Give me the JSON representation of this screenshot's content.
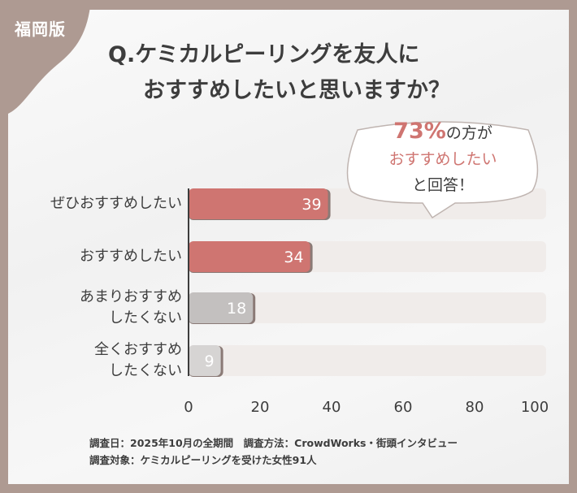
{
  "badge": "福岡版",
  "title": {
    "line1": "Q.ケミカルピーリングを友人に",
    "line2": "おすすめしたいと思いますか？"
  },
  "callout": {
    "percent": "73%",
    "line1_rest": "の方が",
    "line2": "おすすめしたい",
    "line3": "と回答！"
  },
  "colors": {
    "background": "#ae9a92",
    "recommend": "#cf7571",
    "not_recommend": "#c3c0bf",
    "track": "#f0ecea"
  },
  "chart_data": {
    "type": "bar",
    "orientation": "horizontal",
    "categories": [
      "ぜひおすすめしたい",
      "おすすめしたい",
      "あまりおすすめしたくない",
      "全くおすすめしたくない"
    ],
    "category_lines": [
      [
        "ぜひおすすめしたい"
      ],
      [
        "おすすめしたい"
      ],
      [
        "あまりおすすめ",
        "したくない"
      ],
      [
        "全くおすすめ",
        "したくない"
      ]
    ],
    "values": [
      39,
      34,
      18,
      9
    ],
    "xlim": [
      0,
      100
    ],
    "xticks": [
      "0",
      "20",
      "40",
      "60",
      "80",
      "100"
    ],
    "grid": false
  },
  "notes": {
    "line1": "調査日：2025年10月の全期間　調査方法：CrowdWorks・街頭インタビュー",
    "line2": "調査対象：ケミカルピーリングを受けた女性91人"
  }
}
